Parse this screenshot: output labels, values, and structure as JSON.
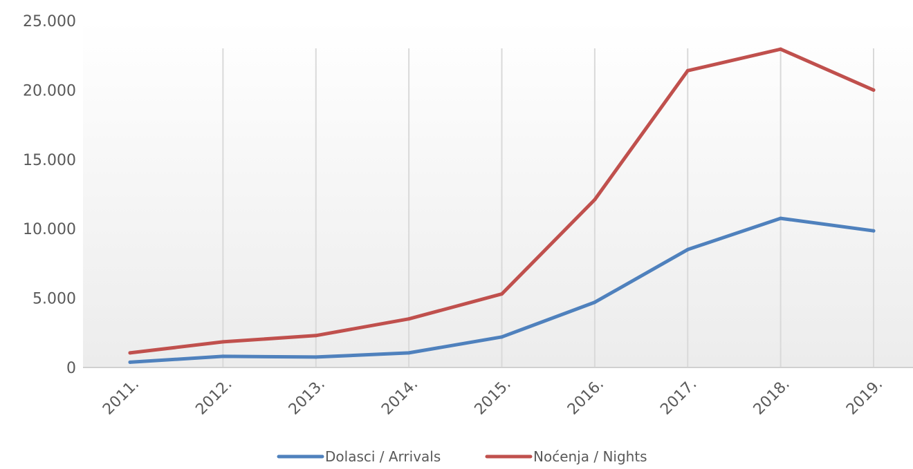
{
  "chart_data": {
    "type": "line",
    "title": "",
    "xlabel": "",
    "ylabel": "",
    "categories": [
      "2011.",
      "2012.",
      "2013.",
      "2014.",
      "2015.",
      "2016.",
      "2017.",
      "2018.",
      "2019."
    ],
    "y_ticks": [
      "0",
      "5.000",
      "10.000",
      "15.000",
      "20.000",
      "25.000"
    ],
    "ylim": [
      0,
      25000
    ],
    "grid": "vertical",
    "legend_position": "bottom",
    "series": [
      {
        "name": "Dolasci / Arrivals",
        "color": "#4f81bd",
        "values": [
          380,
          800,
          750,
          1050,
          2200,
          4700,
          8500,
          10750,
          9850
        ]
      },
      {
        "name": "Noćenja / Nights",
        "color": "#c0504d",
        "values": [
          1050,
          1850,
          2300,
          3500,
          5300,
          12100,
          21400,
          22950,
          20000
        ]
      }
    ]
  }
}
